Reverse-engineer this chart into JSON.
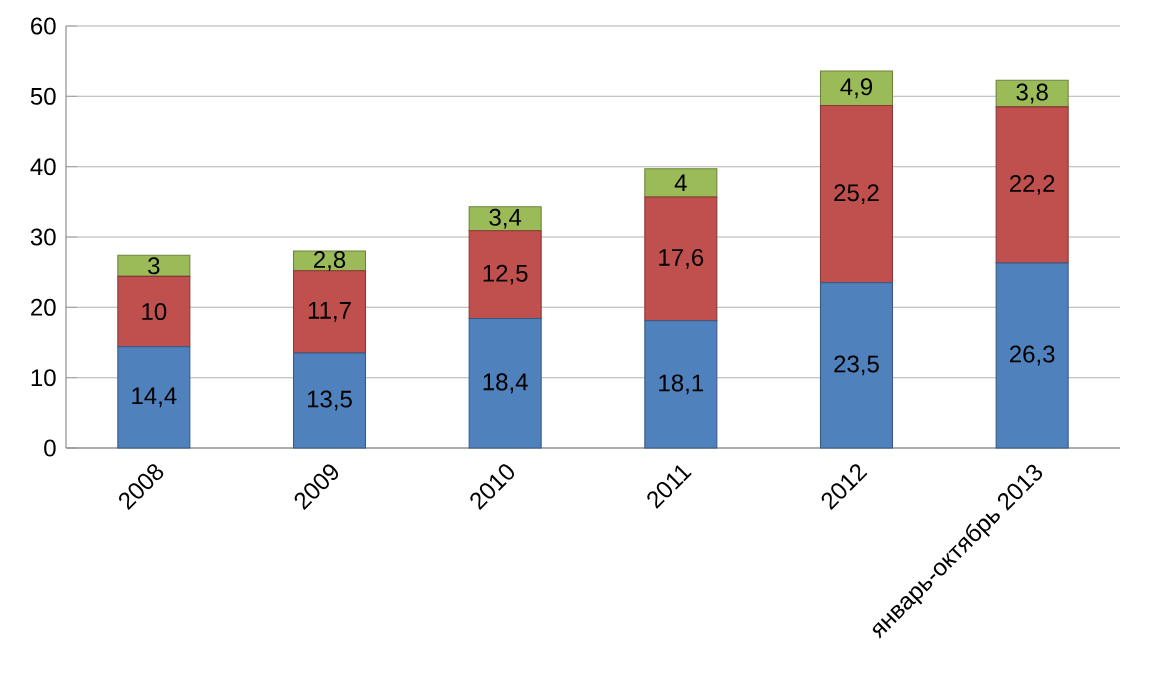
{
  "chart_data": {
    "type": "bar",
    "stacked": true,
    "categories": [
      "2008",
      "2009",
      "2010",
      "2011",
      "2012",
      "январь-октябрь 2013"
    ],
    "series": [
      {
        "color": "#4f81bd",
        "values": [
          14.4,
          13.5,
          18.4,
          18.1,
          23.5,
          26.3
        ],
        "value_labels": [
          "14,4",
          "13,5",
          "18,4",
          "18,1",
          "23,5",
          "26,3"
        ]
      },
      {
        "color": "#c0504d",
        "values": [
          10,
          11.7,
          12.5,
          17.6,
          25.2,
          22.2
        ],
        "value_labels": [
          "10",
          "11,7",
          "12,5",
          "17,6",
          "25,2",
          "22,2"
        ]
      },
      {
        "color": "#9bbb59",
        "values": [
          3,
          2.8,
          3.4,
          4,
          4.9,
          3.8
        ],
        "value_labels": [
          "3",
          "2,8",
          "3,4",
          "4",
          "4,9",
          "3,8"
        ]
      }
    ],
    "ylim": [
      0,
      60
    ],
    "yticks": [
      0,
      10,
      20,
      30,
      40,
      50,
      60
    ],
    "grid": "y"
  }
}
